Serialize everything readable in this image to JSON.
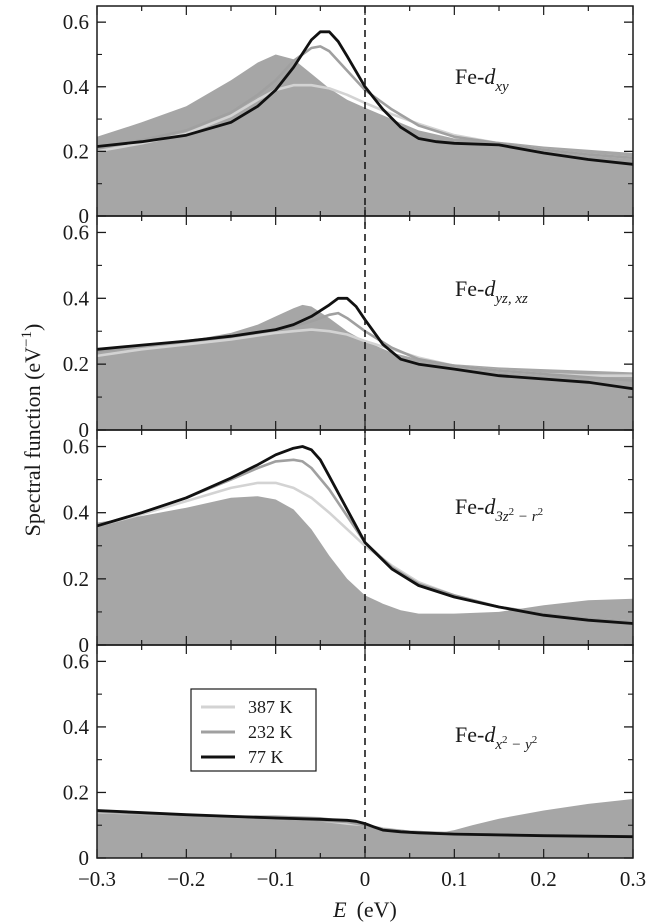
{
  "chart_data": {
    "type": "line",
    "xlabel_var": "E",
    "xlabel_unit": "(eV)",
    "ylabel": "Spectral function (eV",
    "ylabel_sup": "−1",
    "ylabel_close": ")",
    "xlim": [
      -0.3,
      0.3
    ],
    "x_ticks": [
      -0.3,
      -0.2,
      -0.1,
      0,
      0.1,
      0.2,
      0.3
    ],
    "x_tick_labels": [
      "−0.3",
      "−0.2",
      "−0.1",
      "0",
      "0.1",
      "0.2",
      "0.3"
    ],
    "ylim": [
      0,
      0.65
    ],
    "y_ticks": [
      0,
      0.2,
      0.4,
      0.6
    ],
    "y_tick_labels": [
      "0",
      "0.2",
      "0.4",
      "0.6"
    ],
    "fermi_level_line": "dashed vertical at E = 0",
    "legend": {
      "position": "lower panel, left",
      "entries": [
        {
          "label": "387 K",
          "color": "#d3d3d3"
        },
        {
          "label": "232 K",
          "color": "#a0a0a0"
        },
        {
          "label": "77 K",
          "color": "#111111"
        }
      ]
    },
    "filled_area_color": "#a6a6a6",
    "panels": [
      {
        "label_prefix": "Fe-",
        "label_main": "d",
        "label_sub": "xy",
        "label_sub2": "",
        "label_sub_mid": "",
        "label_sub3": "",
        "label_sub4": "",
        "shaded": {
          "x": [
            -0.3,
            -0.25,
            -0.2,
            -0.15,
            -0.12,
            -0.1,
            -0.08,
            -0.06,
            -0.04,
            -0.02,
            0,
            0.03,
            0.06,
            0.1,
            0.15,
            0.2,
            0.25,
            0.3
          ],
          "y": [
            0.245,
            0.29,
            0.34,
            0.42,
            0.475,
            0.5,
            0.485,
            0.44,
            0.395,
            0.36,
            0.335,
            0.3,
            0.265,
            0.24,
            0.23,
            0.215,
            0.205,
            0.195
          ]
        },
        "series": [
          {
            "name": "387 K",
            "x": [
              -0.3,
              -0.25,
              -0.2,
              -0.15,
              -0.12,
              -0.1,
              -0.08,
              -0.06,
              -0.04,
              -0.02,
              0,
              0.03,
              0.06,
              0.1,
              0.15,
              0.2,
              0.25,
              0.3
            ],
            "y": [
              0.2,
              0.225,
              0.255,
              0.31,
              0.36,
              0.39,
              0.405,
              0.405,
              0.395,
              0.375,
              0.35,
              0.315,
              0.285,
              0.25,
              0.225,
              0.205,
              0.19,
              0.18
            ]
          },
          {
            "name": "232 K",
            "x": [
              -0.3,
              -0.25,
              -0.2,
              -0.15,
              -0.12,
              -0.1,
              -0.08,
              -0.06,
              -0.05,
              -0.04,
              -0.02,
              0,
              0.03,
              0.06,
              0.1,
              0.15,
              0.2,
              0.25,
              0.3
            ],
            "y": [
              0.21,
              0.235,
              0.265,
              0.32,
              0.375,
              0.42,
              0.48,
              0.52,
              0.525,
              0.51,
              0.45,
              0.39,
              0.33,
              0.28,
              0.245,
              0.225,
              0.205,
              0.19,
              0.18
            ]
          },
          {
            "name": "77 K",
            "x": [
              -0.3,
              -0.25,
              -0.2,
              -0.15,
              -0.12,
              -0.1,
              -0.08,
              -0.06,
              -0.05,
              -0.04,
              -0.03,
              -0.02,
              0,
              0.02,
              0.04,
              0.06,
              0.08,
              0.1,
              0.15,
              0.2,
              0.25,
              0.3
            ],
            "y": [
              0.215,
              0.23,
              0.25,
              0.29,
              0.34,
              0.39,
              0.46,
              0.545,
              0.57,
              0.57,
              0.54,
              0.495,
              0.4,
              0.33,
              0.275,
              0.24,
              0.23,
              0.225,
              0.22,
              0.195,
              0.175,
              0.16
            ]
          }
        ]
      },
      {
        "label_prefix": "Fe-",
        "label_main": "d",
        "label_sub": "yz, xz",
        "label_sub2": "",
        "label_sub_mid": "",
        "label_sub3": "",
        "label_sub4": "",
        "shaded": {
          "x": [
            -0.3,
            -0.25,
            -0.2,
            -0.15,
            -0.12,
            -0.1,
            -0.08,
            -0.07,
            -0.06,
            -0.04,
            -0.02,
            0,
            0.03,
            0.06,
            0.1,
            0.15,
            0.2,
            0.25,
            0.3
          ],
          "y": [
            0.24,
            0.255,
            0.27,
            0.295,
            0.32,
            0.345,
            0.37,
            0.38,
            0.375,
            0.34,
            0.3,
            0.27,
            0.235,
            0.215,
            0.2,
            0.19,
            0.185,
            0.18,
            0.175
          ]
        },
        "series": [
          {
            "name": "387 K",
            "x": [
              -0.3,
              -0.25,
              -0.2,
              -0.15,
              -0.1,
              -0.08,
              -0.06,
              -0.04,
              -0.02,
              0,
              0.03,
              0.06,
              0.1,
              0.15,
              0.2,
              0.25,
              0.3
            ],
            "y": [
              0.225,
              0.245,
              0.26,
              0.275,
              0.295,
              0.3,
              0.305,
              0.3,
              0.29,
              0.27,
              0.245,
              0.22,
              0.195,
              0.18,
              0.17,
              0.165,
              0.165
            ]
          },
          {
            "name": "232 K",
            "x": [
              -0.3,
              -0.25,
              -0.2,
              -0.15,
              -0.1,
              -0.08,
              -0.06,
              -0.04,
              -0.03,
              -0.02,
              0,
              0.03,
              0.06,
              0.1,
              0.15,
              0.2,
              0.25,
              0.3
            ],
            "y": [
              0.24,
              0.255,
              0.27,
              0.285,
              0.305,
              0.315,
              0.33,
              0.35,
              0.355,
              0.34,
              0.3,
              0.25,
              0.215,
              0.195,
              0.18,
              0.17,
              0.16,
              0.15
            ]
          },
          {
            "name": "77 K",
            "x": [
              -0.3,
              -0.25,
              -0.2,
              -0.15,
              -0.1,
              -0.08,
              -0.06,
              -0.04,
              -0.03,
              -0.02,
              -0.01,
              0,
              0.02,
              0.04,
              0.06,
              0.1,
              0.15,
              0.2,
              0.25,
              0.3
            ],
            "y": [
              0.245,
              0.258,
              0.27,
              0.285,
              0.305,
              0.32,
              0.345,
              0.38,
              0.4,
              0.4,
              0.375,
              0.335,
              0.26,
              0.215,
              0.2,
              0.185,
              0.165,
              0.155,
              0.145,
              0.125
            ]
          }
        ]
      },
      {
        "label_prefix": "Fe-",
        "label_main": "d",
        "label_sub": "3z",
        "label_sub2": "2",
        "label_sub_mid": " − r",
        "label_sub3": "2",
        "label_sub4": "",
        "shaded": {
          "x": [
            -0.3,
            -0.25,
            -0.2,
            -0.15,
            -0.12,
            -0.1,
            -0.08,
            -0.06,
            -0.04,
            -0.02,
            0,
            0.02,
            0.04,
            0.06,
            0.1,
            0.15,
            0.2,
            0.25,
            0.3
          ],
          "y": [
            0.37,
            0.39,
            0.415,
            0.445,
            0.45,
            0.44,
            0.41,
            0.35,
            0.27,
            0.2,
            0.15,
            0.125,
            0.105,
            0.095,
            0.095,
            0.1,
            0.12,
            0.135,
            0.14
          ]
        },
        "series": [
          {
            "name": "387 K",
            "x": [
              -0.3,
              -0.25,
              -0.2,
              -0.15,
              -0.12,
              -0.1,
              -0.08,
              -0.06,
              -0.04,
              -0.02,
              0,
              0.03,
              0.06,
              0.1,
              0.15,
              0.2,
              0.25,
              0.3
            ],
            "y": [
              0.36,
              0.395,
              0.435,
              0.475,
              0.49,
              0.49,
              0.475,
              0.445,
              0.4,
              0.35,
              0.3,
              0.24,
              0.19,
              0.15,
              0.115,
              0.095,
              0.08,
              0.07
            ]
          },
          {
            "name": "232 K",
            "x": [
              -0.3,
              -0.25,
              -0.2,
              -0.15,
              -0.12,
              -0.1,
              -0.08,
              -0.07,
              -0.06,
              -0.04,
              -0.02,
              0,
              0.03,
              0.06,
              0.1,
              0.15,
              0.2,
              0.25,
              0.3
            ],
            "y": [
              0.36,
              0.4,
              0.445,
              0.5,
              0.535,
              0.555,
              0.56,
              0.555,
              0.535,
              0.47,
              0.39,
              0.31,
              0.235,
              0.185,
              0.15,
              0.115,
              0.095,
              0.08,
              0.07
            ]
          },
          {
            "name": "77 K",
            "x": [
              -0.3,
              -0.25,
              -0.2,
              -0.15,
              -0.12,
              -0.1,
              -0.08,
              -0.07,
              -0.06,
              -0.05,
              -0.04,
              -0.02,
              0,
              0.03,
              0.06,
              0.1,
              0.15,
              0.2,
              0.25,
              0.3
            ],
            "y": [
              0.36,
              0.4,
              0.445,
              0.505,
              0.545,
              0.575,
              0.595,
              0.6,
              0.59,
              0.56,
              0.51,
              0.41,
              0.31,
              0.23,
              0.18,
              0.145,
              0.115,
              0.09,
              0.075,
              0.065
            ]
          }
        ]
      },
      {
        "label_prefix": "Fe-",
        "label_main": "d",
        "label_sub": "x",
        "label_sub2": "2",
        "label_sub_mid": " − y",
        "label_sub3": "2",
        "label_sub4": "",
        "shaded": {
          "x": [
            -0.3,
            -0.25,
            -0.2,
            -0.15,
            -0.1,
            -0.05,
            -0.02,
            0,
            0.02,
            0.04,
            0.06,
            0.08,
            0.1,
            0.12,
            0.15,
            0.2,
            0.25,
            0.3
          ],
          "y": [
            0.14,
            0.135,
            0.13,
            0.13,
            0.13,
            0.125,
            0.115,
            0.1,
            0.085,
            0.08,
            0.075,
            0.075,
            0.085,
            0.1,
            0.12,
            0.145,
            0.165,
            0.18
          ]
        },
        "series": [
          {
            "name": "387 K",
            "x": [
              -0.3,
              -0.2,
              -0.1,
              -0.05,
              -0.02,
              0,
              0.02,
              0.05,
              0.1,
              0.2,
              0.3
            ],
            "y": [
              0.14,
              0.13,
              0.12,
              0.115,
              0.105,
              0.1,
              0.09,
              0.08,
              0.075,
              0.068,
              0.065
            ]
          },
          {
            "name": "232 K",
            "x": [
              -0.3,
              -0.2,
              -0.1,
              -0.05,
              -0.02,
              0,
              0.02,
              0.05,
              0.1,
              0.2,
              0.3
            ],
            "y": [
              0.142,
              0.13,
              0.12,
              0.115,
              0.11,
              0.1,
              0.088,
              0.08,
              0.075,
              0.068,
              0.065
            ]
          },
          {
            "name": "77 K",
            "x": [
              -0.3,
              -0.2,
              -0.1,
              -0.05,
              -0.02,
              -0.01,
              0,
              0.01,
              0.02,
              0.04,
              0.06,
              0.1,
              0.2,
              0.3
            ],
            "y": [
              0.145,
              0.132,
              0.122,
              0.118,
              0.115,
              0.112,
              0.105,
              0.095,
              0.085,
              0.08,
              0.077,
              0.073,
              0.068,
              0.065
            ]
          }
        ]
      }
    ]
  }
}
